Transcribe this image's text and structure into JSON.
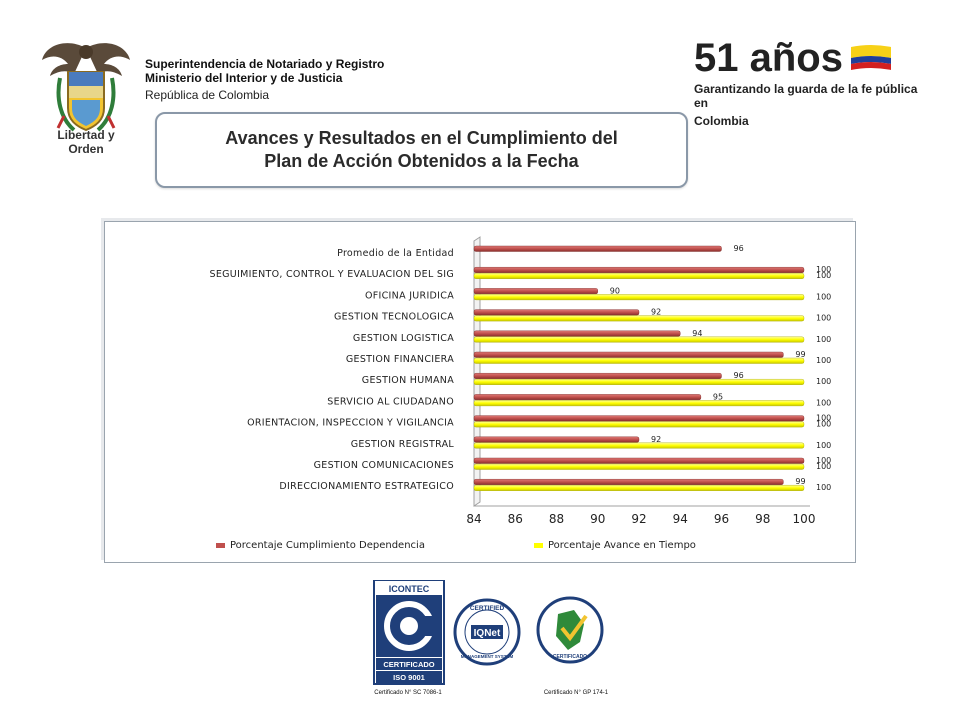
{
  "header": {
    "org_name": "Superintendencia de Notariado y Registro",
    "ministry": "Ministerio del Interior y de Justicia",
    "country": "República de Colombia",
    "crest_caption": "Libertad y Orden"
  },
  "anniversary": {
    "big": "51 años",
    "line1": "Garantizando la guarda de la fe pública en",
    "line2": "Colombia"
  },
  "title": {
    "line1": "Avances y Resultados en el Cumplimiento del",
    "line2": "Plan de Acción Obtenidos a la Fecha"
  },
  "certificates": {
    "icontec_top": "ICONTEC",
    "icontec_cert": "CERTIFICADO",
    "icontec_iso": "ISO 9001",
    "icontec_num": "Certificado N° SC 7086-1",
    "iqnet_top": "CERTIFIED",
    "iqnet_name": "IQNet",
    "iqnet_bottom": "MANAGEMENT SYSTEM",
    "gp_label": "CERTIFICADO",
    "gp_num": "Certificado N° GP 174-1"
  },
  "colors": {
    "series1": "#c0504d",
    "series2": "#ffff00"
  },
  "chart_data": {
    "type": "bar",
    "orientation": "horizontal",
    "categories": [
      "Promedio de la Entidad",
      "SEGUIMIENTO, CONTROL Y EVALUACION DEL SIG",
      "OFICINA JURIDICA",
      "GESTION TECNOLOGICA",
      "GESTION LOGISTICA",
      "GESTION FINANCIERA",
      "GESTION HUMANA",
      "SERVICIO AL CIUDADANO",
      "ORIENTACION, INSPECCION Y VIGILANCIA",
      "GESTION REGISTRAL",
      "GESTION COMUNICACIONES",
      "DIRECCIONAMIENTO ESTRATEGICO"
    ],
    "series": [
      {
        "name": "Porcentaje Cumplimiento Dependencia",
        "values": [
          96,
          100,
          90,
          92,
          94,
          99,
          96,
          95,
          100,
          92,
          100,
          99
        ]
      },
      {
        "name": "Porcentaje Avance en Tiempo",
        "values": [
          null,
          100,
          100,
          100,
          100,
          100,
          100,
          100,
          100,
          100,
          100,
          100
        ]
      }
    ],
    "xlim": [
      84,
      100
    ],
    "xticks": [
      84,
      86,
      88,
      90,
      92,
      94,
      96,
      98,
      100
    ],
    "legend_position": "bottom",
    "grid": false
  }
}
